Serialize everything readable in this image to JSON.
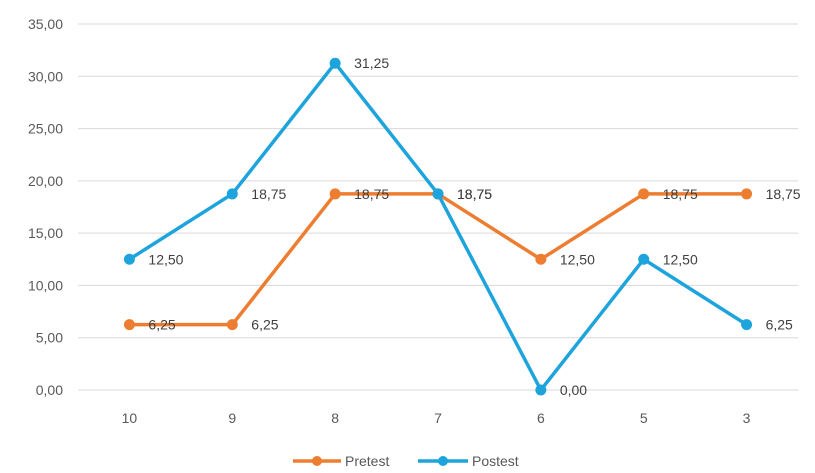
{
  "chart_data": {
    "type": "line",
    "categories": [
      "10",
      "9",
      "8",
      "7",
      "6",
      "5",
      "3"
    ],
    "series": [
      {
        "name": "Pretest",
        "color": "#ed7d31",
        "values": [
          6.25,
          6.25,
          18.75,
          18.75,
          12.5,
          18.75,
          18.75
        ],
        "labels": [
          "6,25",
          "6,25",
          "18,75",
          "18,75",
          "12,50",
          "18,75",
          "18,75"
        ]
      },
      {
        "name": "Postest",
        "color": "#1ea4dc",
        "values": [
          12.5,
          18.75,
          31.25,
          18.75,
          0,
          12.5,
          6.25
        ],
        "labels": [
          "12,50",
          "18,75",
          "31,25",
          "18,75",
          "0,00",
          "12,50",
          "6,25"
        ]
      }
    ],
    "yticks": [
      0,
      5,
      10,
      15,
      20,
      25,
      30,
      35
    ],
    "ytick_labels": [
      "0,00",
      "5,00",
      "10,00",
      "15,00",
      "20,00",
      "25,00",
      "30,00",
      "35,00"
    ],
    "ylim": [
      0,
      35
    ],
    "grid": true,
    "legend": "bottom",
    "title": "",
    "xlabel": "",
    "ylabel": ""
  }
}
